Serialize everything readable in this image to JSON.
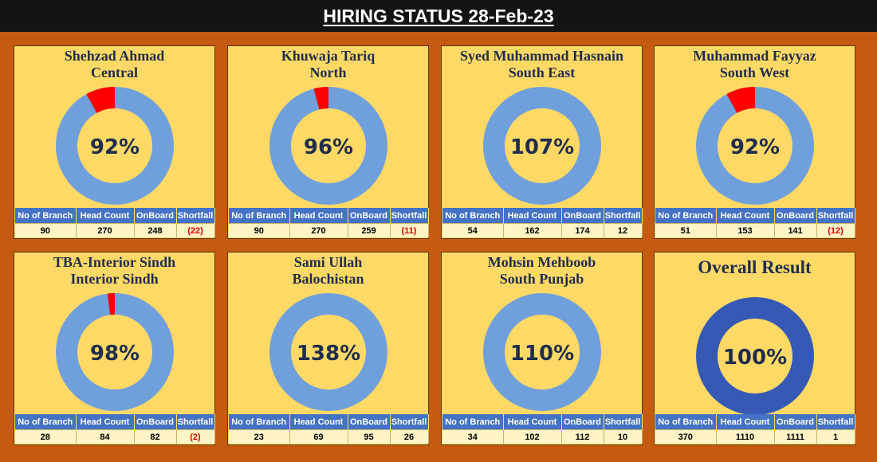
{
  "title": "HIRING STATUS 28-Feb-23",
  "colors": {
    "ring_blue": "#6fa0dc",
    "ring_overall": "#3559b5",
    "shortfall_red": "#ff0000",
    "panel_bg": "#ffd966",
    "page_bg": "#c55a11",
    "header_blue": "#4472c4"
  },
  "columns": [
    "No of Branch",
    "Head Count",
    "OnBoard",
    "Shortfall"
  ],
  "chart_data": [
    {
      "type": "pie",
      "name": "Shehzad Ahmad",
      "region": "Central",
      "percent_label": "92%",
      "achieved": 92,
      "shortfall_pct": 8,
      "branches": "90",
      "head_count": "270",
      "onboard": "248",
      "shortfall": "(22)"
    },
    {
      "type": "pie",
      "name": "Khuwaja Tariq",
      "region": "North",
      "percent_label": "96%",
      "achieved": 96,
      "shortfall_pct": 4,
      "branches": "90",
      "head_count": "270",
      "onboard": "259",
      "shortfall": "(11)"
    },
    {
      "type": "pie",
      "name": "Syed Muhammad Hasnain",
      "region": "South East",
      "percent_label": "107%",
      "achieved": 100,
      "shortfall_pct": 0,
      "branches": "54",
      "head_count": "162",
      "onboard": "174",
      "shortfall": "12"
    },
    {
      "type": "pie",
      "name": "Muhammad Fayyaz",
      "region": "South West",
      "percent_label": "92%",
      "achieved": 92,
      "shortfall_pct": 8,
      "branches": "51",
      "head_count": "153",
      "onboard": "141",
      "shortfall": "(12)"
    },
    {
      "type": "pie",
      "name": "TBA-Interior Sindh",
      "region": "Interior Sindh",
      "percent_label": "98%",
      "achieved": 98,
      "shortfall_pct": 2,
      "branches": "28",
      "head_count": "84",
      "onboard": "82",
      "shortfall": "(2)"
    },
    {
      "type": "pie",
      "name": "Sami Ullah",
      "region": "Balochistan",
      "percent_label": "138%",
      "achieved": 100,
      "shortfall_pct": 0,
      "branches": "23",
      "head_count": "69",
      "onboard": "95",
      "shortfall": "26"
    },
    {
      "type": "pie",
      "name": "Mohsin Mehboob",
      "region": "South Punjab",
      "percent_label": "110%",
      "achieved": 100,
      "shortfall_pct": 0,
      "branches": "34",
      "head_count": "102",
      "onboard": "112",
      "shortfall": "10"
    },
    {
      "type": "pie",
      "name": "Overall Result",
      "region": "",
      "percent_label": "100%",
      "achieved": 100,
      "shortfall_pct": 0,
      "branches": "370",
      "head_count": "1110",
      "onboard": "1111",
      "shortfall": "1"
    }
  ]
}
